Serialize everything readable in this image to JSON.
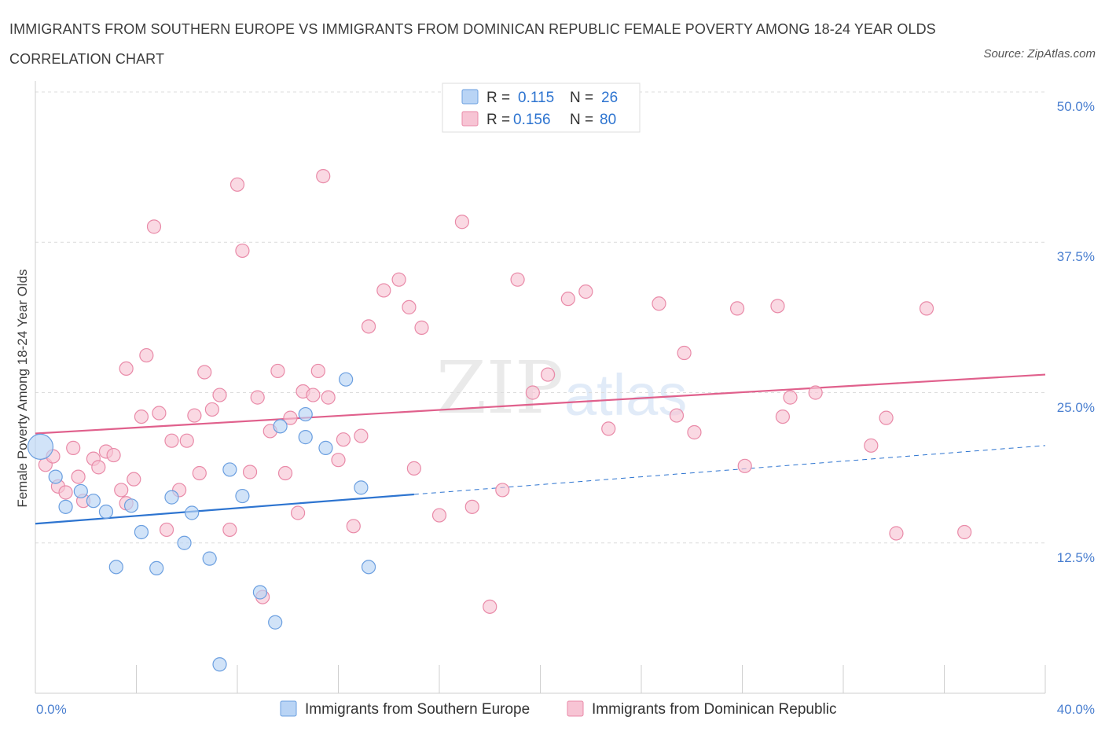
{
  "title": "IMMIGRANTS FROM SOUTHERN EUROPE VS IMMIGRANTS FROM DOMINICAN REPUBLIC FEMALE POVERTY AMONG 18-24 YEAR OLDS CORRELATION CHART",
  "source": "Source: ZipAtlas.com",
  "watermark": {
    "zip": "ZIP",
    "atlas": "atlas"
  },
  "legend": {
    "r_label": "R =",
    "n_label": "N =",
    "rows": [
      {
        "r": "0.115",
        "n": "26"
      },
      {
        "r": "0.156",
        "n": "80"
      }
    ]
  },
  "colors": {
    "blue_fill": "#b9d4f5",
    "blue_stroke": "#6b9fe0",
    "blue_line": "#2d74d0",
    "pink_fill": "#f7c4d4",
    "pink_stroke": "#e98aa8",
    "pink_line": "#e0608c",
    "tick_text": "#4a7fd0",
    "grid": "#dcdcdc"
  },
  "chart_data": {
    "type": "scatter",
    "title": "IMMIGRANTS FROM SOUTHERN EUROPE VS IMMIGRANTS FROM DOMINICAN REPUBLIC FEMALE POVERTY AMONG 18-24 YEAR OLDS CORRELATION CHART",
    "xlabel": "",
    "ylabel": "Female Poverty Among 18-24 Year Olds",
    "xlim": [
      0,
      40
    ],
    "ylim": [
      0,
      50
    ],
    "x_tick_labels": [
      "0.0%",
      "40.0%"
    ],
    "y_ticks": [
      12.5,
      25.0,
      37.5,
      50.0
    ],
    "y_tick_labels": [
      "12.5%",
      "25.0%",
      "37.5%",
      "50.0%"
    ],
    "legend_position": "top-center",
    "grid": true,
    "series": [
      {
        "name": "Immigrants from Southern Europe",
        "r": 0.115,
        "n": 26,
        "trend": {
          "x_start": 0,
          "y_start": 14.1,
          "x_solid_end": 15.0,
          "x_end": 40,
          "y_end": 20.6
        },
        "points": [
          {
            "x": 0.2,
            "y": 20.5,
            "big": true
          },
          {
            "x": 0.8,
            "y": 18.0
          },
          {
            "x": 1.2,
            "y": 15.5
          },
          {
            "x": 1.8,
            "y": 16.8
          },
          {
            "x": 2.3,
            "y": 16.0
          },
          {
            "x": 2.8,
            "y": 15.1
          },
          {
            "x": 3.2,
            "y": 10.5
          },
          {
            "x": 3.8,
            "y": 15.6
          },
          {
            "x": 4.2,
            "y": 13.4
          },
          {
            "x": 4.8,
            "y": 10.4
          },
          {
            "x": 5.4,
            "y": 16.3
          },
          {
            "x": 5.9,
            "y": 12.5
          },
          {
            "x": 6.2,
            "y": 15.0
          },
          {
            "x": 6.9,
            "y": 11.2
          },
          {
            "x": 7.7,
            "y": 18.6
          },
          {
            "x": 8.2,
            "y": 16.4
          },
          {
            "x": 8.9,
            "y": 8.4
          },
          {
            "x": 9.5,
            "y": 5.9
          },
          {
            "x": 9.7,
            "y": 22.2
          },
          {
            "x": 10.7,
            "y": 21.3
          },
          {
            "x": 10.7,
            "y": 23.2
          },
          {
            "x": 11.5,
            "y": 20.4
          },
          {
            "x": 12.3,
            "y": 26.1
          },
          {
            "x": 12.9,
            "y": 17.1
          },
          {
            "x": 13.2,
            "y": 10.5
          },
          {
            "x": 7.3,
            "y": 2.4
          }
        ]
      },
      {
        "name": "Immigrants from Dominican Republic",
        "r": 0.156,
        "n": 80,
        "trend": {
          "x_start": 0,
          "y_start": 21.6,
          "x_end": 40,
          "y_end": 26.5
        },
        "points": [
          {
            "x": 0.4,
            "y": 19.0
          },
          {
            "x": 0.7,
            "y": 19.7
          },
          {
            "x": 0.9,
            "y": 17.2
          },
          {
            "x": 1.2,
            "y": 16.7
          },
          {
            "x": 1.5,
            "y": 20.4
          },
          {
            "x": 1.7,
            "y": 18.0
          },
          {
            "x": 1.9,
            "y": 16.0
          },
          {
            "x": 2.3,
            "y": 19.5
          },
          {
            "x": 2.5,
            "y": 18.8
          },
          {
            "x": 2.8,
            "y": 20.1
          },
          {
            "x": 3.1,
            "y": 19.8
          },
          {
            "x": 3.4,
            "y": 16.9
          },
          {
            "x": 3.6,
            "y": 15.8
          },
          {
            "x": 3.6,
            "y": 27.0
          },
          {
            "x": 3.9,
            "y": 17.8
          },
          {
            "x": 4.2,
            "y": 23.0
          },
          {
            "x": 4.4,
            "y": 28.1
          },
          {
            "x": 4.7,
            "y": 38.8
          },
          {
            "x": 4.9,
            "y": 23.3
          },
          {
            "x": 5.2,
            "y": 13.6
          },
          {
            "x": 5.4,
            "y": 21.0
          },
          {
            "x": 5.7,
            "y": 16.9
          },
          {
            "x": 6.0,
            "y": 21.0
          },
          {
            "x": 6.3,
            "y": 23.1
          },
          {
            "x": 6.5,
            "y": 18.3
          },
          {
            "x": 6.7,
            "y": 26.7
          },
          {
            "x": 7.0,
            "y": 23.6
          },
          {
            "x": 7.3,
            "y": 24.8
          },
          {
            "x": 7.7,
            "y": 13.6
          },
          {
            "x": 8.0,
            "y": 42.3
          },
          {
            "x": 8.2,
            "y": 36.8
          },
          {
            "x": 8.5,
            "y": 18.4
          },
          {
            "x": 8.8,
            "y": 24.6
          },
          {
            "x": 9.0,
            "y": 8.0
          },
          {
            "x": 9.3,
            "y": 21.8
          },
          {
            "x": 9.6,
            "y": 26.8
          },
          {
            "x": 9.9,
            "y": 18.3
          },
          {
            "x": 10.1,
            "y": 22.9
          },
          {
            "x": 10.4,
            "y": 15.0
          },
          {
            "x": 10.6,
            "y": 25.1
          },
          {
            "x": 11.0,
            "y": 24.8
          },
          {
            "x": 11.2,
            "y": 26.8
          },
          {
            "x": 11.4,
            "y": 43.0
          },
          {
            "x": 11.6,
            "y": 24.6
          },
          {
            "x": 12.0,
            "y": 19.4
          },
          {
            "x": 12.2,
            "y": 21.1
          },
          {
            "x": 12.6,
            "y": 13.9
          },
          {
            "x": 12.9,
            "y": 21.4
          },
          {
            "x": 13.2,
            "y": 30.5
          },
          {
            "x": 13.8,
            "y": 33.5
          },
          {
            "x": 14.4,
            "y": 34.4
          },
          {
            "x": 14.8,
            "y": 32.1
          },
          {
            "x": 15.0,
            "y": 18.7
          },
          {
            "x": 15.3,
            "y": 30.4
          },
          {
            "x": 16.0,
            "y": 14.8
          },
          {
            "x": 16.9,
            "y": 39.2
          },
          {
            "x": 17.3,
            "y": 15.5
          },
          {
            "x": 18.0,
            "y": 7.2
          },
          {
            "x": 18.5,
            "y": 16.9
          },
          {
            "x": 19.1,
            "y": 34.4
          },
          {
            "x": 19.7,
            "y": 25.0
          },
          {
            "x": 20.3,
            "y": 26.5
          },
          {
            "x": 21.1,
            "y": 32.8
          },
          {
            "x": 21.8,
            "y": 33.4
          },
          {
            "x": 22.7,
            "y": 22.0
          },
          {
            "x": 24.7,
            "y": 32.4
          },
          {
            "x": 25.4,
            "y": 23.1
          },
          {
            "x": 25.7,
            "y": 28.3
          },
          {
            "x": 26.1,
            "y": 21.7
          },
          {
            "x": 27.8,
            "y": 32.0
          },
          {
            "x": 28.1,
            "y": 18.9
          },
          {
            "x": 29.4,
            "y": 32.2
          },
          {
            "x": 29.6,
            "y": 23.0
          },
          {
            "x": 29.9,
            "y": 24.6
          },
          {
            "x": 30.9,
            "y": 25.0
          },
          {
            "x": 33.1,
            "y": 20.6
          },
          {
            "x": 33.7,
            "y": 22.9
          },
          {
            "x": 34.1,
            "y": 13.3
          },
          {
            "x": 35.3,
            "y": 32.0
          },
          {
            "x": 36.8,
            "y": 13.4
          }
        ]
      }
    ]
  }
}
